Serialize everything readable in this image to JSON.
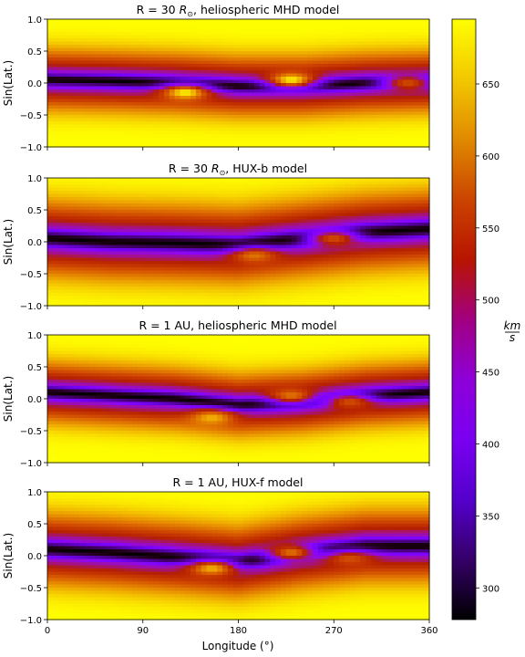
{
  "chart_data": [
    {
      "type": "heatmap",
      "title": "R = 30 R⊙, heliospheric MHD model",
      "ylabel": "Sin(Lat.)",
      "xlim": [
        0,
        360
      ],
      "ylim": [
        -1.0,
        1.0
      ],
      "yticks": [
        "1.0",
        "0.5",
        "0.0",
        "−0.5",
        "−1.0"
      ],
      "xticks_visible": false,
      "features": [
        {
          "kind": "slow-band-track",
          "lon": [
            0,
            60,
            120,
            180,
            240,
            300,
            360
          ],
          "center": [
            0.05,
            0.03,
            0.0,
            -0.05,
            -0.05,
            0.0,
            0.02
          ],
          "halfwidth_kms_300": 0.12
        },
        {
          "kind": "fast-wind-island",
          "lon": 230,
          "sinlat": 0.05,
          "approx_kms": 690
        },
        {
          "kind": "fast-wind-island",
          "lon": 130,
          "sinlat": -0.15,
          "approx_kms": 690
        },
        {
          "kind": "fast-wind-island",
          "lon": 340,
          "sinlat": 0.0,
          "approx_kms": 560
        }
      ]
    },
    {
      "type": "heatmap",
      "title": "R = 30 R⊙, HUX-b model",
      "ylabel": "Sin(Lat.)",
      "xlim": [
        0,
        360
      ],
      "ylim": [
        -1.0,
        1.0
      ],
      "yticks": [
        "1.0",
        "0.5",
        "0.0",
        "−0.5",
        "−1.0"
      ],
      "xticks_visible": false,
      "features": [
        {
          "kind": "slow-band-track",
          "lon": [
            0,
            60,
            120,
            180,
            240,
            300,
            360
          ],
          "center": [
            0.05,
            0.0,
            -0.02,
            -0.05,
            0.05,
            0.15,
            0.2
          ],
          "halfwidth_kms_300": 0.15
        },
        {
          "kind": "fast-wind-island",
          "lon": 195,
          "sinlat": -0.22,
          "approx_kms": 600
        },
        {
          "kind": "fast-wind-island",
          "lon": 270,
          "sinlat": 0.05,
          "approx_kms": 560
        }
      ]
    },
    {
      "type": "heatmap",
      "title": "R = 1 AU, heliospheric MHD model",
      "ylabel": "Sin(Lat.)",
      "xlim": [
        0,
        360
      ],
      "ylim": [
        -1.0,
        1.0
      ],
      "yticks": [
        "1.0",
        "0.5",
        "0.0",
        "−0.5",
        "−1.0"
      ],
      "xticks_visible": false,
      "features": [
        {
          "kind": "slow-band-track",
          "lon": [
            0,
            60,
            120,
            180,
            240,
            300,
            360
          ],
          "center": [
            0.1,
            0.05,
            0.0,
            -0.1,
            -0.05,
            0.05,
            0.1
          ],
          "halfwidth_kms_300": 0.12
        },
        {
          "kind": "fast-wind-island",
          "lon": 230,
          "sinlat": 0.05,
          "approx_kms": 600
        },
        {
          "kind": "fast-wind-island",
          "lon": 155,
          "sinlat": -0.3,
          "approx_kms": 650
        },
        {
          "kind": "fast-wind-island",
          "lon": 285,
          "sinlat": -0.05,
          "approx_kms": 560
        }
      ]
    },
    {
      "type": "heatmap",
      "title": "R = 1 AU, HUX-f model",
      "ylabel": "Sin(Lat.)",
      "xlabel": "Longitude (°)",
      "xlim": [
        0,
        360
      ],
      "ylim": [
        -1.0,
        1.0
      ],
      "xticks": [
        "0",
        "90",
        "180",
        "270",
        "360"
      ],
      "yticks": [
        "1.0",
        "0.5",
        "0.0",
        "−0.5",
        "−1.0"
      ],
      "xticks_visible": true,
      "features": [
        {
          "kind": "slow-band-track",
          "lon": [
            0,
            60,
            120,
            180,
            240,
            300,
            360
          ],
          "center": [
            0.1,
            0.05,
            -0.02,
            -0.1,
            0.05,
            0.15,
            0.15
          ],
          "halfwidth_kms_300": 0.14
        },
        {
          "kind": "fast-wind-island",
          "lon": 230,
          "sinlat": 0.05,
          "approx_kms": 600
        },
        {
          "kind": "fast-wind-island",
          "lon": 155,
          "sinlat": -0.2,
          "approx_kms": 650
        },
        {
          "kind": "fast-wind-island",
          "lon": 285,
          "sinlat": -0.05,
          "approx_kms": 560
        }
      ]
    }
  ],
  "colorbar": {
    "label_num": "km",
    "label_den": "s",
    "colormap": "gnuplot",
    "vmin": 278,
    "vmax": 695,
    "ticks": [
      300,
      350,
      400,
      450,
      500,
      550,
      600,
      650
    ]
  },
  "colors": {
    "fast": "#ffff00",
    "slow": "#000000",
    "mid": "#8000ff",
    "mid_high": "#c02800"
  }
}
